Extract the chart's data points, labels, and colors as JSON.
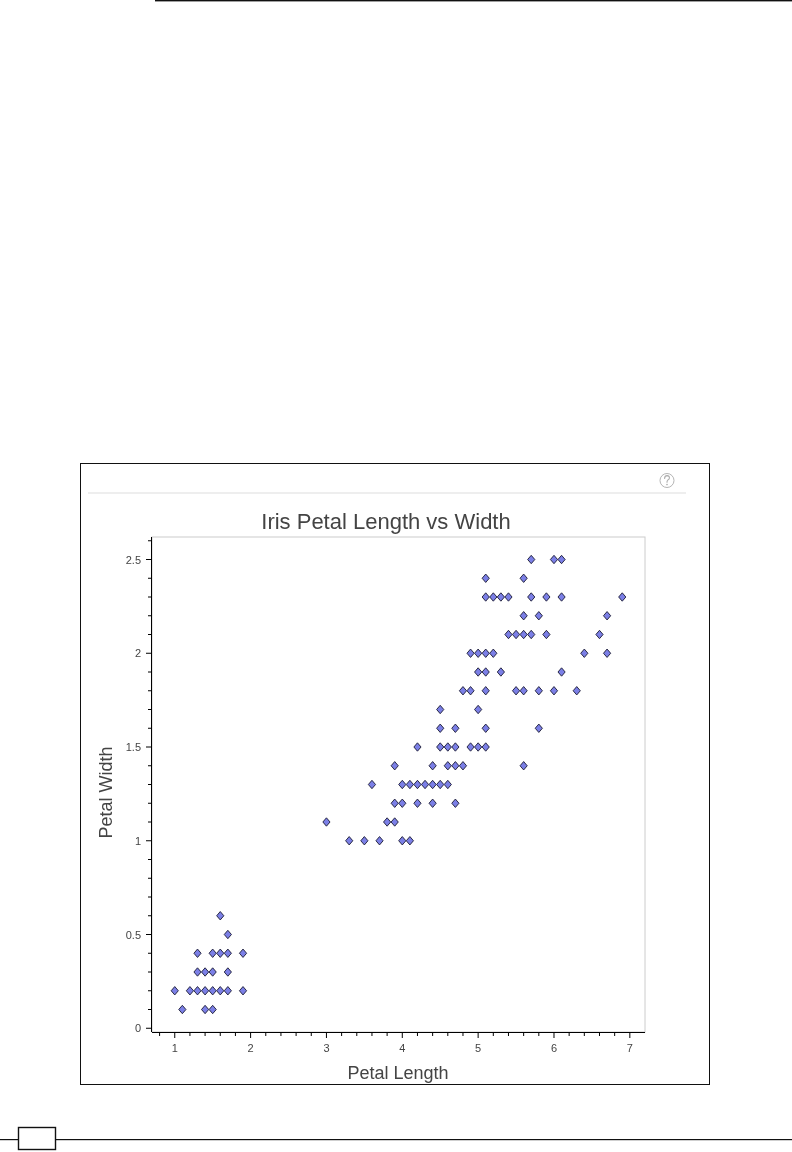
{
  "chart_data": {
    "type": "scatter",
    "title": "Iris Petal Length vs Width",
    "xlabel": "Petal Length",
    "ylabel": "Petal Width",
    "x": [
      1.0,
      1.1,
      1.2,
      1.3,
      1.3,
      1.3,
      1.4,
      1.4,
      1.4,
      1.5,
      1.5,
      1.5,
      1.5,
      1.6,
      1.6,
      1.6,
      1.7,
      1.7,
      1.7,
      1.7,
      1.9,
      1.9,
      3.3,
      3.5,
      3.7,
      4.0,
      4.1,
      3.0,
      3.8,
      3.9,
      3.9,
      4.0,
      4.2,
      4.4,
      4.7,
      3.6,
      4.0,
      4.1,
      4.2,
      4.3,
      4.4,
      4.5,
      4.6,
      3.9,
      4.4,
      4.6,
      4.7,
      4.8,
      5.6,
      4.2,
      4.5,
      4.6,
      4.7,
      4.9,
      5.0,
      5.1,
      4.5,
      4.7,
      5.1,
      5.8,
      4.5,
      5.0,
      4.8,
      4.9,
      5.1,
      5.5,
      5.6,
      5.8,
      6.0,
      6.3,
      5.0,
      5.1,
      5.3,
      6.1,
      4.9,
      5.0,
      5.1,
      5.2,
      6.4,
      6.7,
      5.4,
      5.5,
      5.6,
      5.7,
      5.9,
      6.6,
      5.6,
      5.8,
      6.7,
      5.1,
      5.2,
      5.3,
      5.4,
      5.7,
      5.9,
      6.1,
      6.9,
      5.1,
      5.6,
      5.7,
      6.0,
      6.1
    ],
    "values": [
      0.2,
      0.1,
      0.2,
      0.2,
      0.3,
      0.4,
      0.1,
      0.2,
      0.3,
      0.1,
      0.2,
      0.3,
      0.4,
      0.2,
      0.4,
      0.6,
      0.2,
      0.3,
      0.4,
      0.5,
      0.2,
      0.4,
      1.0,
      1.0,
      1.0,
      1.0,
      1.0,
      1.1,
      1.1,
      1.1,
      1.2,
      1.2,
      1.2,
      1.2,
      1.2,
      1.3,
      1.3,
      1.3,
      1.3,
      1.3,
      1.3,
      1.3,
      1.3,
      1.4,
      1.4,
      1.4,
      1.4,
      1.4,
      1.4,
      1.5,
      1.5,
      1.5,
      1.5,
      1.5,
      1.5,
      1.5,
      1.6,
      1.6,
      1.6,
      1.6,
      1.7,
      1.7,
      1.8,
      1.8,
      1.8,
      1.8,
      1.8,
      1.8,
      1.8,
      1.8,
      1.9,
      1.9,
      1.9,
      1.9,
      2.0,
      2.0,
      2.0,
      2.0,
      2.0,
      2.0,
      2.1,
      2.1,
      2.1,
      2.1,
      2.1,
      2.1,
      2.2,
      2.2,
      2.2,
      2.3,
      2.3,
      2.3,
      2.3,
      2.3,
      2.3,
      2.3,
      2.3,
      2.4,
      2.4,
      2.5,
      2.5,
      2.5
    ],
    "color": "#7b7fe6",
    "marker": "diamond",
    "xlim": [
      0.7,
      7.2
    ],
    "xticks": [
      {
        "value": 0.8,
        "label": null
      },
      1,
      {
        "value": 1.2,
        "label": null
      },
      {
        "value": 1.4,
        "label": null
      },
      {
        "value": 1.6,
        "label": null
      },
      {
        "value": 1.8,
        "label": null
      },
      2,
      {
        "value": 2.2,
        "label": null
      },
      {
        "value": 2.4,
        "label": null
      },
      {
        "value": 2.6,
        "label": null
      },
      {
        "value": 2.8,
        "label": null
      },
      3,
      {
        "value": 3.2,
        "label": null
      },
      {
        "value": 3.4,
        "label": null
      },
      {
        "value": 3.6,
        "label": null
      },
      {
        "value": 3.8,
        "label": null
      },
      4,
      {
        "value": 4.2,
        "label": null
      },
      {
        "value": 4.4,
        "label": null
      },
      {
        "value": 4.6,
        "label": null
      },
      {
        "value": 4.8,
        "label": null
      },
      5,
      {
        "value": 5.2,
        "label": null
      },
      {
        "value": 5.4,
        "label": null
      },
      {
        "value": 5.6,
        "label": null
      },
      {
        "value": 5.8,
        "label": null
      },
      6,
      {
        "value": 6.2,
        "label": null
      },
      {
        "value": 6.4,
        "label": null
      },
      {
        "value": 6.6,
        "label": null
      },
      {
        "value": 6.8,
        "label": null
      },
      7
    ],
    "ylim": [
      -0.02,
      2.62
    ],
    "yticks": [
      0,
      {
        "value": 0.1,
        "label": null
      },
      {
        "value": 0.2,
        "label": null
      },
      {
        "value": 0.3,
        "label": null
      },
      {
        "value": 0.4,
        "label": null
      },
      0.5,
      {
        "value": 0.6,
        "label": null
      },
      {
        "value": 0.7,
        "label": null
      },
      {
        "value": 0.8,
        "label": null
      },
      {
        "value": 0.9,
        "label": null
      },
      1,
      {
        "value": 1.1,
        "label": null
      },
      {
        "value": 1.2,
        "label": null
      },
      {
        "value": 1.3,
        "label": null
      },
      {
        "value": 1.4,
        "label": null
      },
      1.5,
      {
        "value": 1.6,
        "label": null
      },
      {
        "value": 1.7,
        "label": null
      },
      {
        "value": 1.8,
        "label": null
      },
      {
        "value": 1.9,
        "label": null
      },
      2,
      {
        "value": 2.1,
        "label": null
      },
      {
        "value": 2.2,
        "label": null
      },
      {
        "value": 2.3,
        "label": null
      },
      {
        "value": 2.4,
        "label": null
      },
      2.5,
      {
        "value": 2.6,
        "label": null
      }
    ]
  }
}
